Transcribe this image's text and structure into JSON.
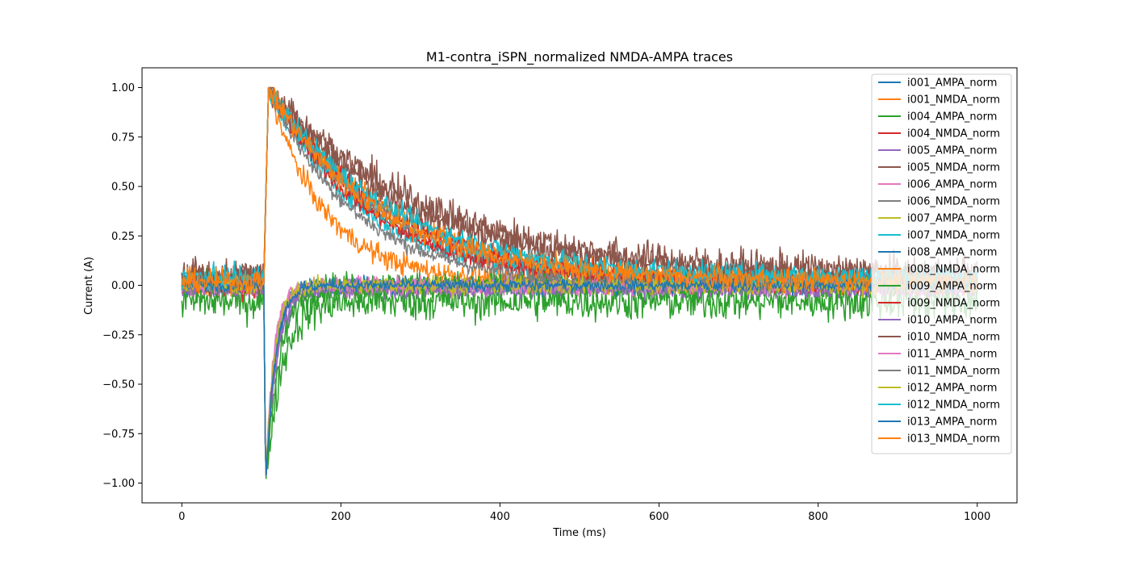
{
  "chart_data": {
    "type": "line",
    "title": "M1-contra_iSPN_normalized NMDA-AMPA traces",
    "xlabel": "Time (ms)",
    "ylabel": "Current (A)",
    "xlim": [
      -50,
      1050
    ],
    "ylim": [
      -1.1,
      1.1
    ],
    "xticks": [
      0,
      200,
      400,
      600,
      800,
      1000
    ],
    "xtick_labels": [
      "0",
      "200",
      "400",
      "600",
      "800",
      "1000"
    ],
    "yticks": [
      1.0,
      0.75,
      0.5,
      0.25,
      0.0,
      -0.25,
      -0.5,
      -0.75,
      -1.0
    ],
    "ytick_labels": [
      "1.00",
      "0.75",
      "0.50",
      "0.25",
      "0.00",
      "−0.25",
      "−0.50",
      "−0.75",
      "−1.00"
    ],
    "grid": false,
    "legend_position": "upper right",
    "stimulus_time_ms": 103,
    "series": [
      {
        "name": "i001_AMPA_norm",
        "kind": "AMPA",
        "color": "#1f77b4",
        "peak": -1.0,
        "tau_ms": 12,
        "baseline": 0.0,
        "noise": 0.03
      },
      {
        "name": "i001_NMDA_norm",
        "kind": "NMDA",
        "color": "#ff7f0e",
        "peak": 1.0,
        "tau_ms": 160,
        "baseline": 0.0,
        "noise": 0.04
      },
      {
        "name": "i004_AMPA_norm",
        "kind": "AMPA",
        "color": "#2ca02c",
        "peak": -1.0,
        "tau_ms": 20,
        "baseline": -0.08,
        "noise": 0.07
      },
      {
        "name": "i004_NMDA_norm",
        "kind": "NMDA",
        "color": "#d62728",
        "peak": 1.0,
        "tau_ms": 150,
        "baseline": 0.0,
        "noise": 0.04
      },
      {
        "name": "i005_AMPA_norm",
        "kind": "AMPA",
        "color": "#9467bd",
        "peak": -1.0,
        "tau_ms": 14,
        "baseline": -0.02,
        "noise": 0.03
      },
      {
        "name": "i005_NMDA_norm",
        "kind": "NMDA",
        "color": "#8c564b",
        "peak": 1.0,
        "tau_ms": 200,
        "baseline": 0.05,
        "noise": 0.06
      },
      {
        "name": "i006_AMPA_norm",
        "kind": "AMPA",
        "color": "#e377c2",
        "peak": -1.0,
        "tau_ms": 10,
        "baseline": -0.01,
        "noise": 0.03
      },
      {
        "name": "i006_NMDA_norm",
        "kind": "NMDA",
        "color": "#7f7f7f",
        "peak": 1.0,
        "tau_ms": 140,
        "baseline": 0.0,
        "noise": 0.03
      },
      {
        "name": "i007_AMPA_norm",
        "kind": "AMPA",
        "color": "#bcbd22",
        "peak": -1.0,
        "tau_ms": 11,
        "baseline": 0.0,
        "noise": 0.03
      },
      {
        "name": "i007_NMDA_norm",
        "kind": "NMDA",
        "color": "#17becf",
        "peak": 1.0,
        "tau_ms": 120,
        "baseline": 0.03,
        "noise": 0.04
      },
      {
        "name": "i008_AMPA_norm",
        "kind": "AMPA",
        "color": "#1f77b4",
        "peak": -1.0,
        "tau_ms": 12,
        "baseline": 0.0,
        "noise": 0.03
      },
      {
        "name": "i008_NMDA_norm",
        "kind": "NMDA",
        "color": "#ff7f0e",
        "peak": 1.0,
        "tau_ms": 70,
        "baseline": 0.02,
        "noise": 0.04
      },
      {
        "name": "i009_AMPA_norm",
        "kind": "AMPA",
        "color": "#2ca02c",
        "peak": -1.0,
        "tau_ms": 18,
        "baseline": 0.0,
        "noise": 0.05
      },
      {
        "name": "i009_NMDA_norm",
        "kind": "NMDA",
        "color": "#d62728",
        "peak": 1.0,
        "tau_ms": 130,
        "baseline": 0.0,
        "noise": 0.03
      },
      {
        "name": "i010_AMPA_norm",
        "kind": "AMPA",
        "color": "#9467bd",
        "peak": -1.0,
        "tau_ms": 13,
        "baseline": -0.01,
        "noise": 0.03
      },
      {
        "name": "i010_NMDA_norm",
        "kind": "NMDA",
        "color": "#8c564b",
        "peak": 1.0,
        "tau_ms": 180,
        "baseline": 0.04,
        "noise": 0.05
      },
      {
        "name": "i011_AMPA_norm",
        "kind": "AMPA",
        "color": "#e377c2",
        "peak": -1.0,
        "tau_ms": 10,
        "baseline": 0.0,
        "noise": 0.03
      },
      {
        "name": "i011_NMDA_norm",
        "kind": "NMDA",
        "color": "#7f7f7f",
        "peak": 1.0,
        "tau_ms": 110,
        "baseline": 0.0,
        "noise": 0.03
      },
      {
        "name": "i012_AMPA_norm",
        "kind": "AMPA",
        "color": "#bcbd22",
        "peak": -1.0,
        "tau_ms": 11,
        "baseline": 0.0,
        "noise": 0.03
      },
      {
        "name": "i012_NMDA_norm",
        "kind": "NMDA",
        "color": "#17becf",
        "peak": 1.0,
        "tau_ms": 150,
        "baseline": 0.04,
        "noise": 0.04
      },
      {
        "name": "i013_AMPA_norm",
        "kind": "AMPA",
        "color": "#1f77b4",
        "peak": -1.0,
        "tau_ms": 12,
        "baseline": 0.0,
        "noise": 0.02
      },
      {
        "name": "i013_NMDA_norm",
        "kind": "NMDA",
        "color": "#ff7f0e",
        "peak": 1.0,
        "tau_ms": 140,
        "baseline": 0.02,
        "noise": 0.04
      }
    ]
  }
}
